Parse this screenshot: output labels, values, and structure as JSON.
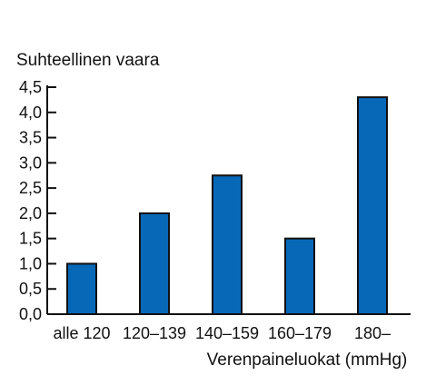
{
  "chart_data": {
    "type": "bar",
    "title": "",
    "ylabel": "Suhteellinen vaara",
    "xlabel": "Verenpaineluokat (mmHg)",
    "categories": [
      "alle 120",
      "120–139",
      "140–159",
      "160–179",
      "180–"
    ],
    "values": [
      1.0,
      2.0,
      2.75,
      1.5,
      4.3
    ],
    "ylim": [
      0,
      4.5
    ],
    "yticks": [
      "0,0",
      "0,5",
      "1,0",
      "1,5",
      "2,0",
      "2,5",
      "3,0",
      "3,5",
      "4,0",
      "4,5"
    ],
    "grid": false,
    "legend": "none",
    "colors": {
      "bar": "#0868B8",
      "bar_outline": "#111111",
      "axis": "#111111",
      "text": "#111111"
    }
  }
}
